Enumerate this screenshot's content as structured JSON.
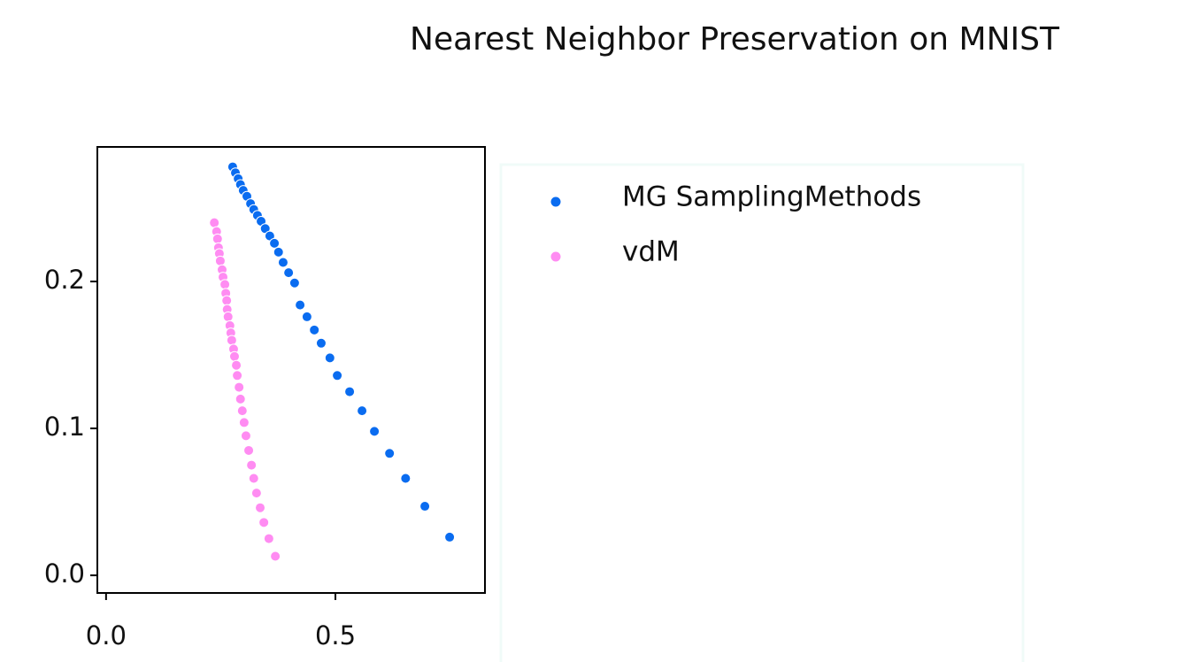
{
  "chart_data": {
    "type": "scatter",
    "title": "Nearest Neighbor Preservation on MNIST",
    "xlim": [
      -0.019,
      0.826
    ],
    "ylim": [
      -0.012,
      0.2916
    ],
    "xticks": [
      {
        "value": 0,
        "label": "0.0"
      },
      {
        "value": 0.5,
        "label": "0.5"
      }
    ],
    "yticks": [
      {
        "value": 0,
        "label": "0.0"
      },
      0.1,
      0.2
    ],
    "legend": "outside right",
    "series": [
      {
        "name": "MG SamplingMethods",
        "color": "#0a6cf0",
        "x": [
          0.276,
          0.282,
          0.288,
          0.293,
          0.299,
          0.307,
          0.315,
          0.322,
          0.33,
          0.338,
          0.347,
          0.357,
          0.367,
          0.376,
          0.386,
          0.398,
          0.411,
          0.423,
          0.438,
          0.454,
          0.469,
          0.488,
          0.504,
          0.531,
          0.558,
          0.585,
          0.618,
          0.653,
          0.695,
          0.749
        ],
        "y": [
          0.278,
          0.274,
          0.27,
          0.266,
          0.262,
          0.258,
          0.253,
          0.249,
          0.245,
          0.241,
          0.236,
          0.231,
          0.226,
          0.22,
          0.213,
          0.206,
          0.199,
          0.184,
          0.176,
          0.167,
          0.158,
          0.148,
          0.136,
          0.125,
          0.112,
          0.098,
          0.083,
          0.066,
          0.047,
          0.026
        ]
      },
      {
        "name": "vdM",
        "color": "#ff8cf2",
        "x": [
          0.236,
          0.241,
          0.243,
          0.245,
          0.247,
          0.249,
          0.253,
          0.255,
          0.259,
          0.261,
          0.263,
          0.264,
          0.266,
          0.27,
          0.272,
          0.274,
          0.278,
          0.28,
          0.284,
          0.286,
          0.29,
          0.293,
          0.297,
          0.301,
          0.305,
          0.311,
          0.317,
          0.322,
          0.328,
          0.336,
          0.344,
          0.355,
          0.369
        ],
        "y": [
          0.24,
          0.234,
          0.229,
          0.223,
          0.219,
          0.214,
          0.208,
          0.203,
          0.198,
          0.192,
          0.187,
          0.181,
          0.176,
          0.17,
          0.165,
          0.16,
          0.154,
          0.149,
          0.143,
          0.136,
          0.128,
          0.12,
          0.112,
          0.104,
          0.095,
          0.085,
          0.075,
          0.066,
          0.056,
          0.046,
          0.036,
          0.025,
          0.013
        ]
      }
    ]
  }
}
